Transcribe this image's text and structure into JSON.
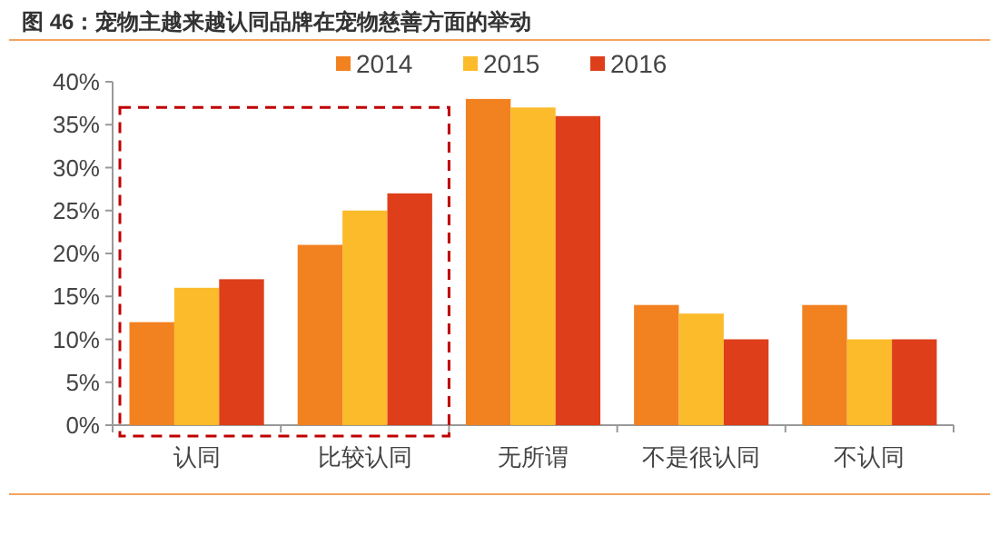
{
  "chart_data": {
    "type": "bar",
    "title": "图 46：宠物主越来越认同品牌在宠物慈善方面的举动",
    "categories": [
      "认同",
      "比较认同",
      "无所谓",
      "不是很认同",
      "不认同"
    ],
    "series": [
      {
        "name": "2014",
        "color": "#f28120",
        "values": [
          12,
          21,
          38,
          14,
          14
        ]
      },
      {
        "name": "2015",
        "color": "#fbbb2b",
        "values": [
          16,
          25,
          37,
          13,
          10
        ]
      },
      {
        "name": "2016",
        "color": "#de3f1a",
        "values": [
          17,
          27,
          36,
          10,
          10
        ]
      }
    ],
    "ylim": [
      0,
      40
    ],
    "yticks": [
      {
        "value": 0,
        "label": "0%"
      },
      {
        "value": 5,
        "label": "5%"
      },
      {
        "value": 10,
        "label": "10%"
      },
      {
        "value": 15,
        "label": "15%"
      },
      {
        "value": 20,
        "label": "20%"
      },
      {
        "value": 25,
        "label": "25%"
      },
      {
        "value": 30,
        "label": "30%"
      },
      {
        "value": 35,
        "label": "35%"
      },
      {
        "value": 40,
        "label": "40%"
      }
    ],
    "legend": "top"
  }
}
